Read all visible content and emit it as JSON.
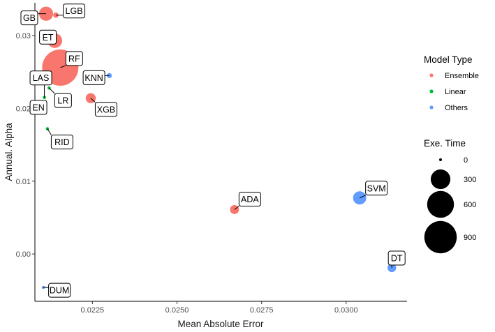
{
  "chart_data": {
    "type": "scatter",
    "xlabel": "Mean Absolute Error",
    "ylabel": "Annual. Alpha",
    "xlim": [
      0.0208,
      0.0318
    ],
    "ylim": [
      -0.0065,
      0.0345
    ],
    "x_ticks": [
      0.0225,
      0.025,
      0.0275,
      0.03
    ],
    "x_tick_labels": [
      "0.0225",
      "0.0250",
      "0.0275",
      "0.0300"
    ],
    "y_ticks": [
      0.0,
      0.01,
      0.02,
      0.03
    ],
    "y_tick_labels": [
      "0.00",
      "0.01",
      "0.02",
      "0.03"
    ],
    "grid": false,
    "legend_position": "right",
    "color_legend": {
      "title": "Model Type",
      "entries": [
        {
          "label": "Ensemble",
          "color": "#F8766D"
        },
        {
          "label": "Linear",
          "color": "#00BA38"
        },
        {
          "label": "Others",
          "color": "#619CFF"
        }
      ]
    },
    "size_legend": {
      "title": "Exe. Time",
      "entries": [
        {
          "label": "0",
          "value": 0
        },
        {
          "label": "300",
          "value": 300
        },
        {
          "label": "600",
          "value": 600
        },
        {
          "label": "900",
          "value": 900
        }
      ]
    },
    "points": [
      {
        "label": "LGB",
        "x": 0.02142,
        "y": 0.0328,
        "type": "Ensemble",
        "time": 10
      },
      {
        "label": "GB",
        "x": 0.02113,
        "y": 0.033,
        "type": "Ensemble",
        "time": 140
      },
      {
        "label": "ET",
        "x": 0.02139,
        "y": 0.0293,
        "type": "Ensemble",
        "time": 150
      },
      {
        "label": "RF",
        "x": 0.02155,
        "y": 0.0256,
        "type": "Ensemble",
        "time": 1150
      },
      {
        "label": "KNN",
        "x": 0.023,
        "y": 0.0245,
        "type": "Others",
        "time": 8
      },
      {
        "label": "XGB",
        "x": 0.02245,
        "y": 0.0214,
        "type": "Ensemble",
        "time": 60
      },
      {
        "label": "LAS",
        "x": 0.02108,
        "y": 0.0215,
        "type": "Linear",
        "time": 1
      },
      {
        "label": "LR",
        "x": 0.02122,
        "y": 0.0228,
        "type": "Linear",
        "time": 1
      },
      {
        "label": "EN",
        "x": 0.02107,
        "y": 0.0208,
        "type": "Linear",
        "time": 1
      },
      {
        "label": "RID",
        "x": 0.02117,
        "y": 0.0172,
        "type": "Linear",
        "time": 1
      },
      {
        "label": "ADA",
        "x": 0.0267,
        "y": 0.0061,
        "type": "Ensemble",
        "time": 45
      },
      {
        "label": "SVM",
        "x": 0.0304,
        "y": 0.0077,
        "type": "Others",
        "time": 120
      },
      {
        "label": "DT",
        "x": 0.03135,
        "y": -0.0019,
        "type": "Others",
        "time": 40
      },
      {
        "label": "DUM",
        "x": 0.02105,
        "y": -0.0046,
        "type": "Others",
        "time": 1
      }
    ]
  }
}
